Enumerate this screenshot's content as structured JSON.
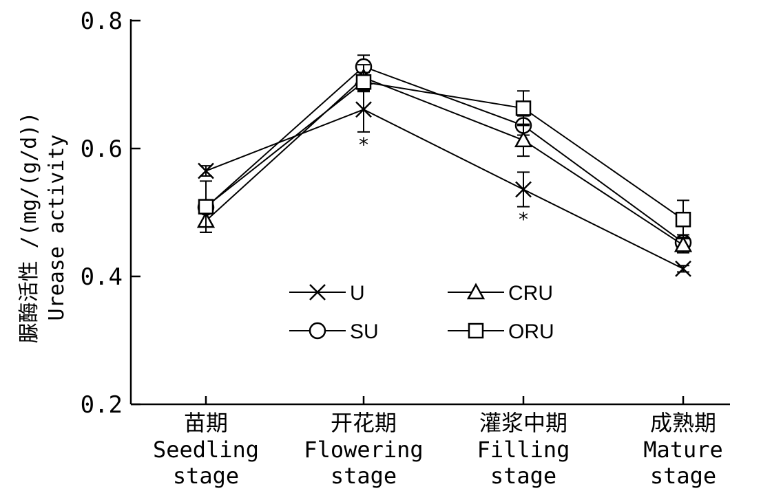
{
  "chart_data": {
    "type": "line",
    "ylabel": "脲酶活性 /(mg/(g/d))",
    "ylabel_en": "Urease activity",
    "ylim": [
      0.2,
      0.8
    ],
    "yticks": [
      "0.2",
      "0.4",
      "0.6",
      "0.8"
    ],
    "ytick_values": [
      0.2,
      0.4,
      0.6,
      0.8
    ],
    "categories": [
      {
        "zh": "苗期",
        "en1": "Seedling",
        "en2": "stage"
      },
      {
        "zh": "开花期",
        "en1": "Flowering",
        "en2": "stage"
      },
      {
        "zh": "灌浆中期",
        "en1": "Filling",
        "en2": "stage"
      },
      {
        "zh": "成熟期",
        "en1": "Mature",
        "en2": "stage"
      }
    ],
    "series": [
      {
        "name": "U",
        "marker": "cross",
        "values": [
          0.565,
          0.661,
          0.536,
          0.412
        ],
        "errors": [
          0.008,
          0.035,
          0.027,
          0.005
        ]
      },
      {
        "name": "SU",
        "marker": "circle",
        "values": [
          0.508,
          0.728,
          0.636,
          0.453
        ],
        "errors": [
          0.01,
          0.018,
          0.015,
          0.012
        ]
      },
      {
        "name": "CRU",
        "marker": "triangle",
        "values": [
          0.487,
          0.711,
          0.613,
          0.449
        ],
        "errors": [
          0.018,
          0.02,
          0.025,
          0.012
        ]
      },
      {
        "name": "ORU",
        "marker": "square",
        "values": [
          0.509,
          0.704,
          0.663,
          0.489
        ],
        "errors": [
          0.04,
          0.015,
          0.027,
          0.03
        ]
      }
    ],
    "significance_marks": [
      {
        "category_index": 1,
        "text": "*"
      },
      {
        "category_index": 2,
        "text": "*"
      }
    ],
    "legend": {
      "position": "inside-bottom-center",
      "items": [
        "U",
        "CRU",
        "SU",
        "ORU"
      ]
    },
    "grid": false
  }
}
